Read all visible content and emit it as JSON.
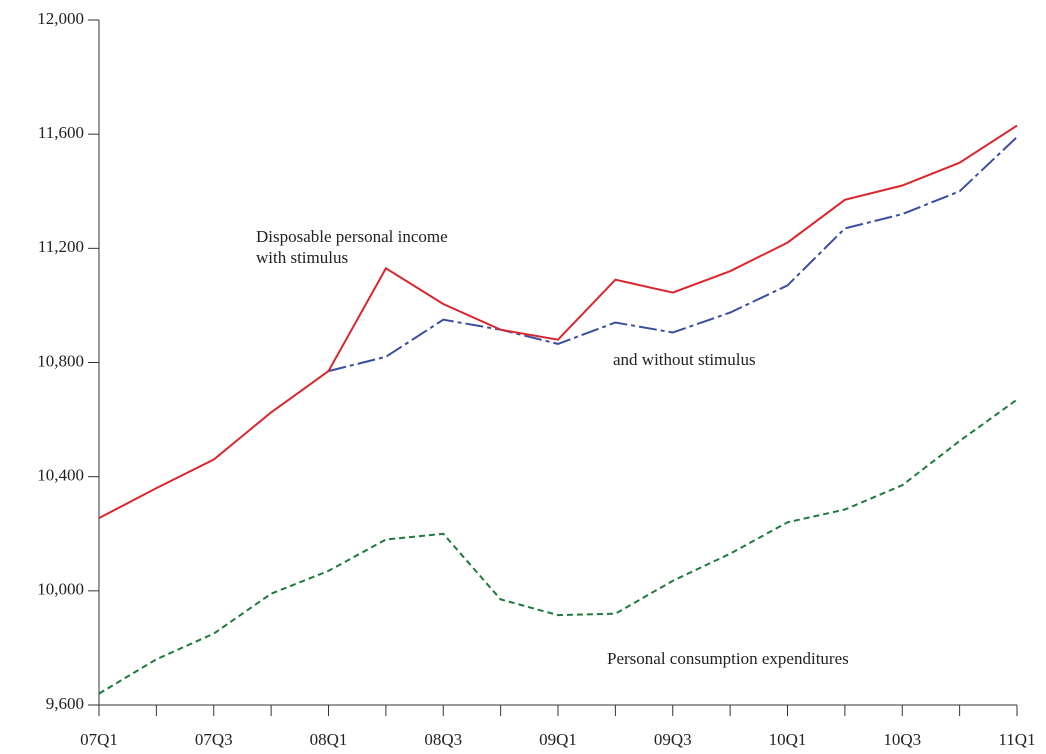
{
  "chart_data": {
    "type": "line",
    "categories": [
      "07Q1",
      null,
      "07Q3",
      null,
      "08Q1",
      null,
      "08Q3",
      null,
      "09Q1",
      null,
      "09Q3",
      null,
      "10Q1",
      null,
      "10Q3",
      null,
      "11Q1"
    ],
    "series": [
      {
        "name": "Disposable personal income with stimulus",
        "color": "#d9262c",
        "line_style": "solid",
        "values": [
          10255,
          10360,
          10460,
          10625,
          10770,
          11130,
          11005,
          10915,
          10880,
          11090,
          11045,
          11120,
          11220,
          11370,
          11420,
          11500,
          11630
        ]
      },
      {
        "name": "and without stimulus",
        "color": "#3b4fa0",
        "line_style": "dashdot",
        "values": [
          null,
          null,
          null,
          null,
          10770,
          10820,
          10950,
          10915,
          10865,
          10940,
          10905,
          10975,
          11070,
          11270,
          11320,
          11400,
          11590
        ]
      },
      {
        "name": "Personal consumption expenditures",
        "color": "#1e7a3c",
        "line_style": "dashed",
        "values": [
          9640,
          9760,
          9850,
          9990,
          10070,
          10180,
          10200,
          9970,
          9915,
          9920,
          10035,
          10130,
          10240,
          10285,
          10370,
          10525,
          10670
        ]
      }
    ],
    "ylim": [
      9600,
      12000
    ],
    "yticks": [
      {
        "value": 9600,
        "label": "9,600"
      },
      {
        "value": 10000,
        "label": "10,000"
      },
      {
        "value": 10400,
        "label": "10,400"
      },
      {
        "value": 10800,
        "label": "10,800"
      },
      {
        "value": 11200,
        "label": "11,200"
      },
      {
        "value": 11600,
        "label": "11,600"
      },
      {
        "value": 12000,
        "label": "12,000"
      }
    ],
    "grid": false
  }
}
